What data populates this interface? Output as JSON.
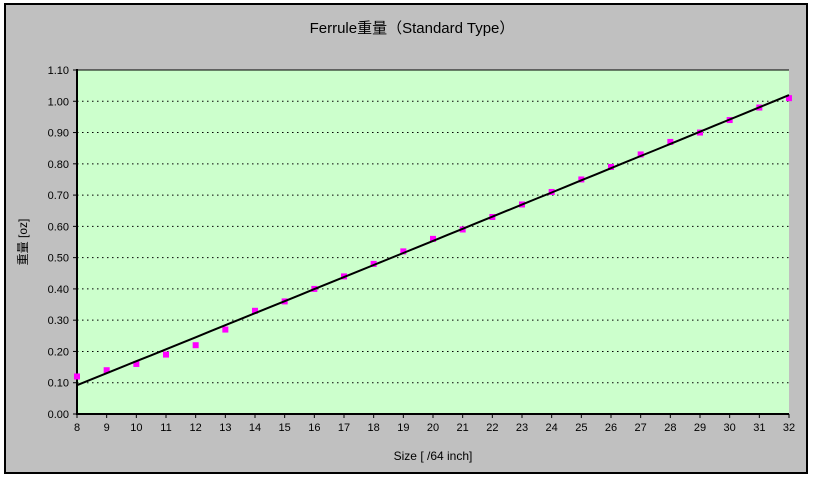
{
  "chart_data": {
    "type": "scatter",
    "title": "Ferrule重量（Standard Type）",
    "xlabel": "Size [ /64 inch]",
    "ylabel": "重量 [oz]",
    "x": [
      8,
      9,
      10,
      11,
      12,
      13,
      14,
      15,
      16,
      17,
      18,
      19,
      20,
      21,
      22,
      23,
      24,
      25,
      26,
      27,
      28,
      29,
      30,
      31,
      32
    ],
    "series": [
      {
        "marker": "square",
        "marker_color": "#FF00FF",
        "values": [
          0.12,
          0.14,
          0.16,
          0.19,
          0.22,
          0.27,
          0.33,
          0.36,
          0.4,
          0.44,
          0.48,
          0.52,
          0.56,
          0.59,
          0.63,
          0.67,
          0.71,
          0.75,
          0.79,
          0.83,
          0.87,
          0.9,
          0.94,
          0.98,
          1.01
        ]
      }
    ],
    "trendline": {
      "type": "polynomial",
      "order": 2,
      "color": "#000000"
    },
    "xlim": [
      8,
      32
    ],
    "ylim": [
      0,
      1.1
    ],
    "y_tick_step": 0.1,
    "y_ticks": [
      "0.00",
      "0.10",
      "0.20",
      "0.30",
      "0.40",
      "0.50",
      "0.60",
      "0.70",
      "0.80",
      "0.90",
      "1.00",
      "1.10"
    ],
    "grid": "horizontal-dotted",
    "legend": "none",
    "colors": {
      "plot_bg": "#CCFFCC",
      "chart_bg": "#C0C0C0",
      "grid": "#000000",
      "axis": "#000000",
      "text": "#000000",
      "marker": "#FF00FF",
      "trendline": "#000000"
    }
  }
}
